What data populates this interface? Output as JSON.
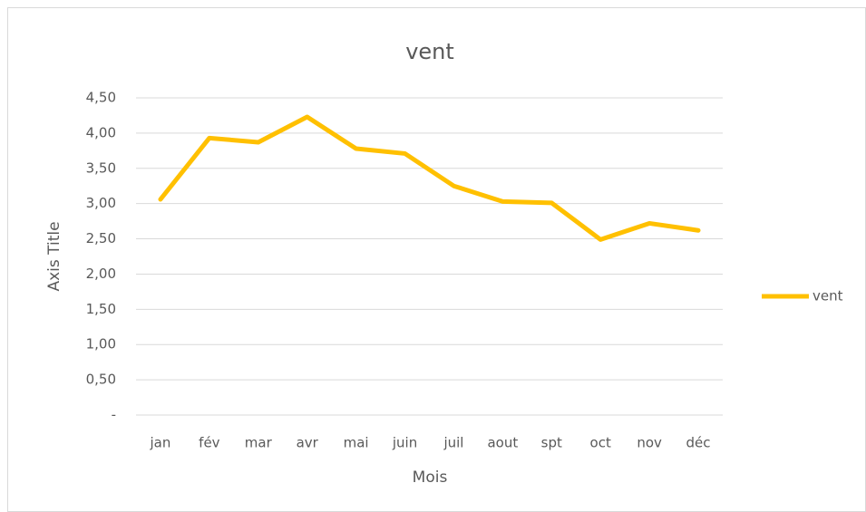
{
  "chart_data": {
    "type": "line",
    "title": "vent",
    "y_label": "Axis Title",
    "x_label": "Mois",
    "categories": [
      "jan",
      "fév",
      "mar",
      "avr",
      "mai",
      "juin",
      "juil",
      "aout",
      "spt",
      "oct",
      "nov",
      "déc"
    ],
    "series": [
      {
        "name": "vent",
        "color": "#ffc000",
        "values": [
          3.06,
          3.93,
          3.87,
          4.23,
          3.78,
          3.71,
          3.25,
          3.03,
          3.01,
          2.49,
          2.72,
          2.62
        ]
      }
    ],
    "ylim": [
      0,
      4.5
    ],
    "yticks": [
      {
        "value": 0,
        "label": "-"
      },
      {
        "value": 0.5,
        "label": "0,50"
      },
      {
        "value": 1,
        "label": "1,00"
      },
      {
        "value": 1.5,
        "label": "1,50"
      },
      {
        "value": 2,
        "label": "2,00"
      },
      {
        "value": 2.5,
        "label": "2,50"
      },
      {
        "value": 3,
        "label": "3,00"
      },
      {
        "value": 3.5,
        "label": "3,50"
      },
      {
        "value": 4,
        "label": "4,00"
      },
      {
        "value": 4.5,
        "label": "4,50"
      }
    ],
    "grid": true,
    "legend": "right"
  }
}
